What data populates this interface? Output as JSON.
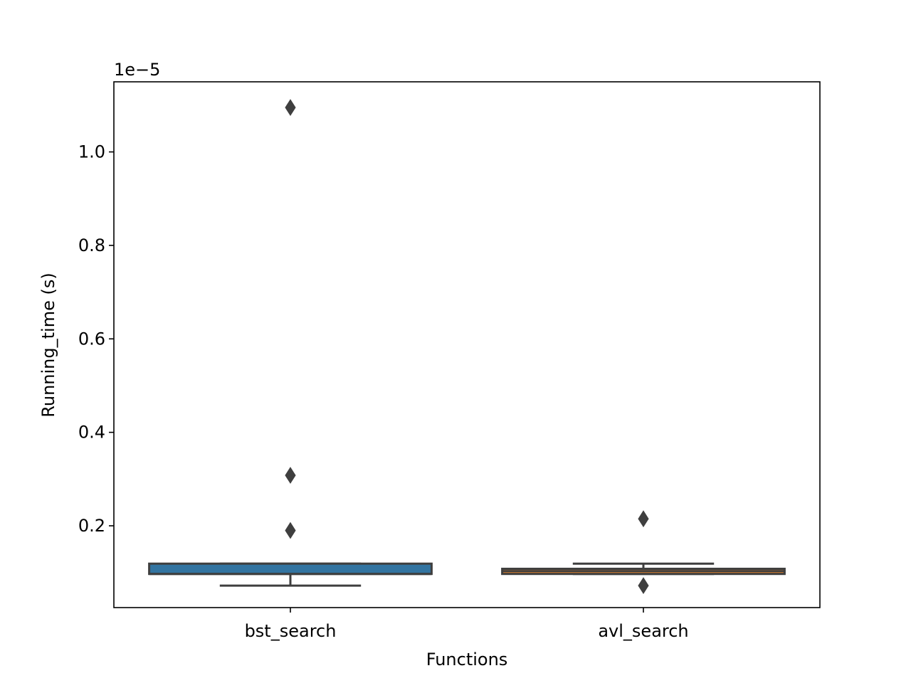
{
  "chart_data": {
    "type": "box",
    "xlabel": "Functions",
    "ylabel": "Running_time (s)",
    "y_scale_label": "1e−5",
    "y_multiplier": 1e-05,
    "ylim": [
      0.025,
      1.15
    ],
    "yticks": [
      0.2,
      0.4,
      0.6,
      0.8,
      1.0
    ],
    "ytick_labels": [
      "0.2",
      "0.4",
      "0.6",
      "0.8",
      "1.0"
    ],
    "grid": false,
    "categories": [
      "bst_search",
      "avl_search"
    ],
    "boxes": [
      {
        "label": "bst_search",
        "color": "#3274a1",
        "whisker_low": 0.072,
        "q1": 0.097,
        "median": 0.097,
        "q3": 0.119,
        "whisker_high": 0.119,
        "outliers": [
          1.095,
          0.308,
          0.19
        ]
      },
      {
        "label": "avl_search",
        "color": "#e1812c",
        "whisker_low": 0.097,
        "q1": 0.097,
        "median": 0.103,
        "q3": 0.108,
        "whisker_high": 0.119,
        "outliers": [
          0.215,
          0.072
        ]
      }
    ]
  }
}
